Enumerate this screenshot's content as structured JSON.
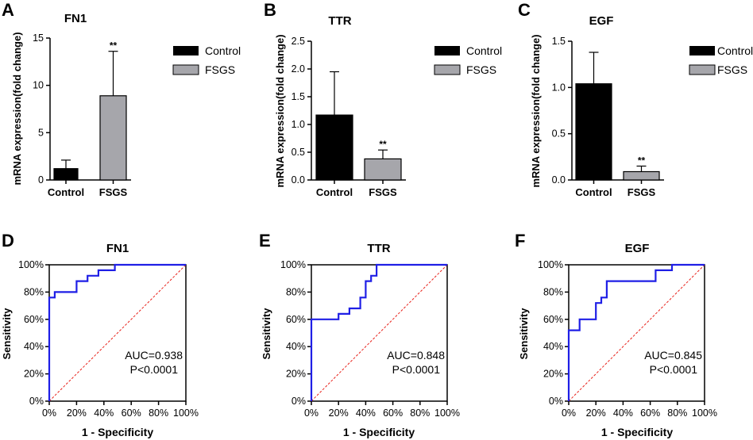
{
  "chart_data": [
    {
      "panel": "A",
      "type": "bar",
      "title": "FN1",
      "ylabel": "mRNA expression(fold change)",
      "ylim": [
        0,
        15
      ],
      "yticks": [
        "0",
        "5",
        "10",
        "15"
      ],
      "ytick_values": [
        0,
        5,
        10,
        15
      ],
      "categories": [
        "Control",
        "FSGS"
      ],
      "values": [
        1.2,
        8.9
      ],
      "errors": [
        0.9,
        4.7
      ],
      "significance": [
        "",
        "**"
      ],
      "colors": [
        "#000000",
        "#a6a6ab"
      ],
      "legend": [
        "Control",
        "FSGS"
      ]
    },
    {
      "panel": "B",
      "type": "bar",
      "title": "TTR",
      "ylabel": "mRNA expression(fold change)",
      "ylim": [
        0,
        2.5
      ],
      "yticks": [
        "0.0",
        "0.5",
        "1.0",
        "1.5",
        "2.0",
        "2.5"
      ],
      "ytick_values": [
        0,
        0.5,
        1,
        1.5,
        2,
        2.5
      ],
      "categories": [
        "Control",
        "FSGS"
      ],
      "values": [
        1.17,
        0.38
      ],
      "errors": [
        0.78,
        0.16
      ],
      "significance": [
        "",
        "**"
      ],
      "colors": [
        "#000000",
        "#a6a6ab"
      ],
      "legend": [
        "Control",
        "FSGS"
      ]
    },
    {
      "panel": "C",
      "type": "bar",
      "title": "EGF",
      "ylabel": "mRNA expression(fold change)",
      "ylim": [
        0,
        1.5
      ],
      "yticks": [
        "0.0",
        "0.5",
        "1.0",
        "1.5"
      ],
      "ytick_values": [
        0,
        0.5,
        1,
        1.5
      ],
      "categories": [
        "Control",
        "FSGS"
      ],
      "values": [
        1.04,
        0.09
      ],
      "errors": [
        0.34,
        0.06
      ],
      "significance": [
        "",
        "**"
      ],
      "colors": [
        "#000000",
        "#a6a6ab"
      ],
      "legend": [
        "Control",
        "FSGS"
      ]
    },
    {
      "panel": "D",
      "type": "line",
      "title": "FN1",
      "xlabel": "1 - Specificity",
      "ylabel": "Sensitivity",
      "ticks": [
        "0%",
        "20%",
        "40%",
        "60%",
        "80%",
        "100%"
      ],
      "tick_values": [
        0,
        20,
        40,
        60,
        80,
        100
      ],
      "auc_label": "AUC=0.938",
      "p_label": "P<0.0001",
      "roc_points": [
        [
          0,
          0
        ],
        [
          0,
          76
        ],
        [
          4,
          76
        ],
        [
          4,
          80
        ],
        [
          20,
          80
        ],
        [
          20,
          88
        ],
        [
          28,
          88
        ],
        [
          28,
          92
        ],
        [
          36,
          92
        ],
        [
          36,
          96
        ],
        [
          48,
          96
        ],
        [
          48,
          100
        ],
        [
          100,
          100
        ]
      ],
      "line_color": "#1f1fe6",
      "reference_color": "#e8231c"
    },
    {
      "panel": "E",
      "type": "line",
      "title": "TTR",
      "xlabel": "1 - Specificity",
      "ylabel": "Sensitivity",
      "ticks": [
        "0%",
        "20%",
        "40%",
        "60%",
        "80%",
        "100%"
      ],
      "tick_values": [
        0,
        20,
        40,
        60,
        80,
        100
      ],
      "auc_label": "AUC=0.848",
      "p_label": "P<0.0001",
      "roc_points": [
        [
          0,
          0
        ],
        [
          0,
          60
        ],
        [
          20,
          60
        ],
        [
          20,
          64
        ],
        [
          28,
          64
        ],
        [
          28,
          68
        ],
        [
          36,
          68
        ],
        [
          36,
          76
        ],
        [
          40,
          76
        ],
        [
          40,
          88
        ],
        [
          44,
          88
        ],
        [
          44,
          92
        ],
        [
          48,
          92
        ],
        [
          48,
          100
        ],
        [
          100,
          100
        ]
      ],
      "line_color": "#1f1fe6",
      "reference_color": "#e8231c"
    },
    {
      "panel": "F",
      "type": "line",
      "title": "EGF",
      "xlabel": "1 - Specificity",
      "ylabel": "Sensitivity",
      "ticks": [
        "0%",
        "20%",
        "40%",
        "60%",
        "80%",
        "100%"
      ],
      "tick_values": [
        0,
        20,
        40,
        60,
        80,
        100
      ],
      "auc_label": "AUC=0.845",
      "p_label": "P<0.0001",
      "roc_points": [
        [
          0,
          0
        ],
        [
          0,
          52
        ],
        [
          8,
          52
        ],
        [
          8,
          60
        ],
        [
          20,
          60
        ],
        [
          20,
          72
        ],
        [
          24,
          72
        ],
        [
          24,
          76
        ],
        [
          28,
          76
        ],
        [
          28,
          88
        ],
        [
          64,
          88
        ],
        [
          64,
          96
        ],
        [
          76,
          96
        ],
        [
          76,
          100
        ],
        [
          100,
          100
        ]
      ],
      "line_color": "#1f1fe6",
      "reference_color": "#e8231c"
    }
  ]
}
